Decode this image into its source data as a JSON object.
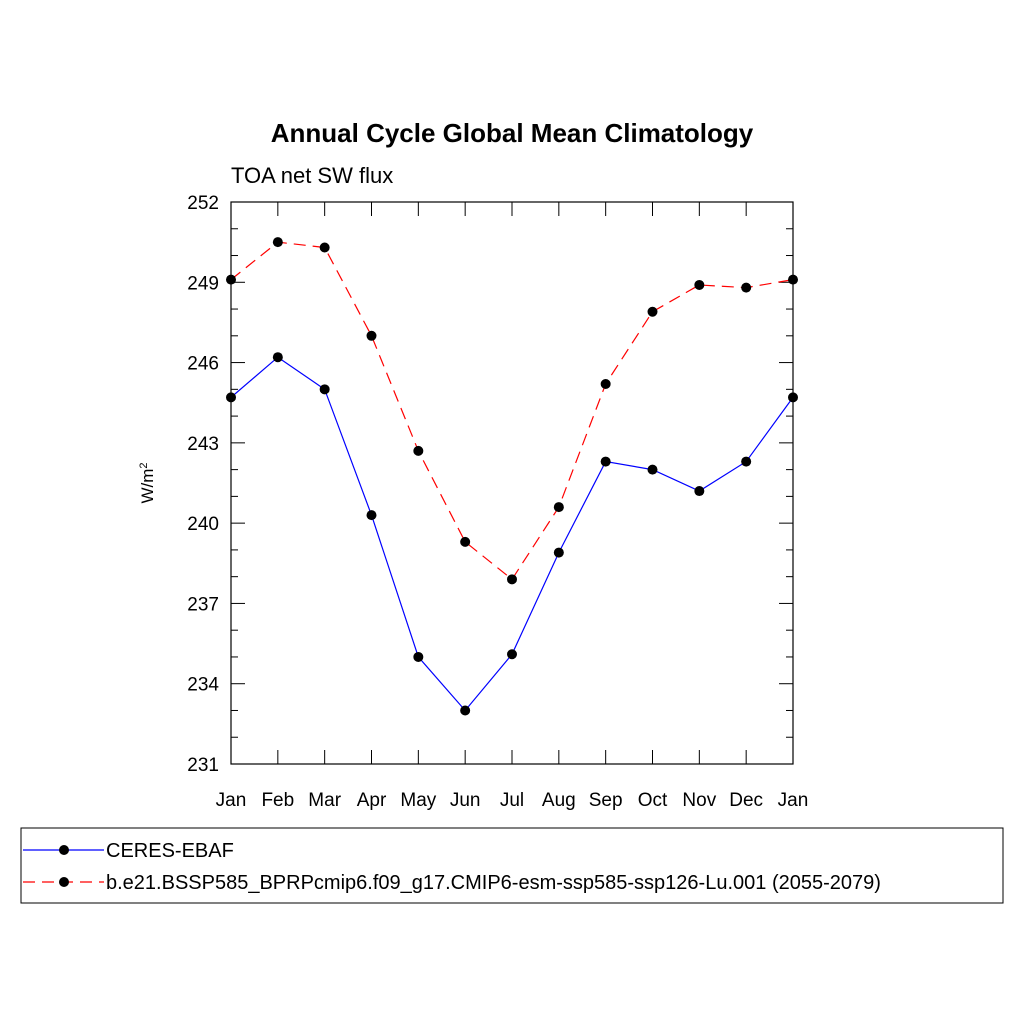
{
  "chart_data": {
    "type": "line",
    "title": "Annual Cycle Global Mean Climatology",
    "subtitle": "TOA net SW flux",
    "ylabel": "W/m",
    "ylabel_superscript": "2",
    "xlabel": "",
    "categories": [
      "Jan",
      "Feb",
      "Mar",
      "Apr",
      "May",
      "Jun",
      "Jul",
      "Aug",
      "Sep",
      "Oct",
      "Nov",
      "Dec",
      "Jan"
    ],
    "ylim": [
      231,
      252
    ],
    "yticks": [
      "231",
      "234",
      "237",
      "240",
      "243",
      "246",
      "249",
      "252"
    ],
    "grid": false,
    "legend_position": "bottom",
    "series": [
      {
        "name": "CERES-EBAF",
        "color": "#0000ff",
        "line_style": "solid",
        "marker": "circle",
        "values": [
          244.7,
          246.2,
          245.0,
          240.3,
          235.0,
          233.0,
          235.1,
          238.9,
          242.3,
          242.0,
          241.2,
          242.3,
          244.7
        ]
      },
      {
        "name": "b.e21.BSSP585_BPRPcmip6.f09_g17.CMIP6-esm-ssp585-ssp126-Lu.001 (2055-2079)",
        "color": "#ff0000",
        "line_style": "dashed",
        "marker": "circle",
        "values": [
          249.1,
          250.5,
          250.3,
          247.0,
          242.7,
          239.3,
          237.9,
          240.6,
          245.2,
          247.9,
          248.9,
          248.8,
          249.1
        ]
      }
    ]
  }
}
